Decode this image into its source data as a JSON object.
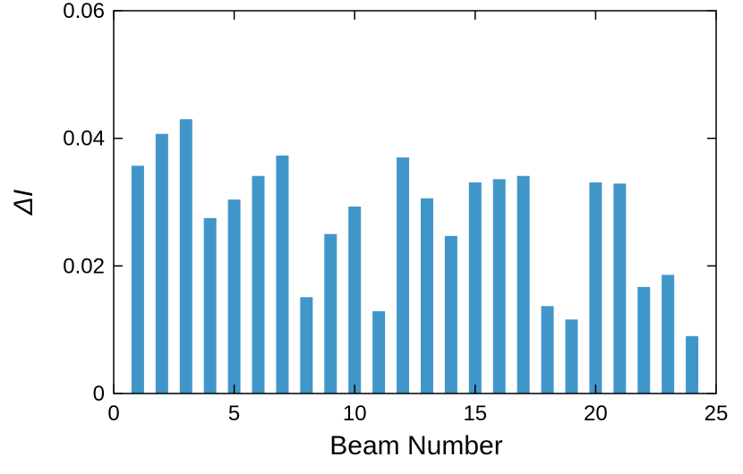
{
  "chart_data": {
    "type": "bar",
    "x_label": "Beam Number",
    "y_label": "ΔI",
    "x": [
      1,
      2,
      3,
      4,
      5,
      6,
      7,
      8,
      9,
      10,
      11,
      12,
      13,
      14,
      15,
      16,
      17,
      18,
      19,
      20,
      21,
      22,
      23,
      24
    ],
    "values": [
      0.0357,
      0.0407,
      0.043,
      0.0275,
      0.0304,
      0.0341,
      0.0373,
      0.0151,
      0.025,
      0.0293,
      0.0129,
      0.037,
      0.0306,
      0.0247,
      0.0331,
      0.0336,
      0.0341,
      0.0137,
      0.0116,
      0.0331,
      0.0329,
      0.0167,
      0.0186,
      0.009
    ],
    "color": "#4196c9",
    "xlim": [
      0,
      25
    ],
    "xticks": [
      0,
      5,
      10,
      15,
      20,
      25
    ],
    "ylim": [
      0,
      0.06
    ],
    "yticks": [
      0,
      0.02,
      0.04,
      0.06
    ]
  }
}
